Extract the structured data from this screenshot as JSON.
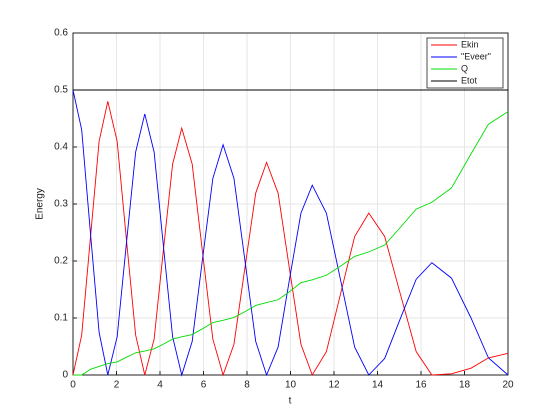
{
  "chart_data": {
    "type": "line",
    "x_label": "t",
    "y_label": "Energy",
    "x": [
      0,
      0.4,
      0.8,
      1.2,
      1.6,
      2.03,
      2.45,
      2.88,
      3.3,
      3.73,
      4.15,
      4.58,
      5.0,
      5.48,
      5.95,
      6.43,
      6.9,
      7.4,
      7.9,
      8.4,
      8.9,
      9.43,
      9.95,
      10.48,
      11.0,
      11.65,
      12.3,
      12.95,
      13.6,
      14.33,
      15.05,
      15.78,
      16.5,
      17.4,
      18.3,
      19.1,
      20
    ],
    "series": [
      {
        "name": "Ekin",
        "color": "#ff0000",
        "values": [
          0,
          0.07,
          0.24,
          0.41,
          0.48,
          0.41,
          0.24,
          0.07,
          0,
          0.063,
          0.217,
          0.37,
          0.433,
          0.37,
          0.217,
          0.063,
          0,
          0.054,
          0.187,
          0.319,
          0.373,
          0.319,
          0.187,
          0.054,
          0,
          0.041,
          0.142,
          0.243,
          0.284,
          0.243,
          0.142,
          0.041,
          0,
          0.002,
          0.012,
          0.03,
          0.038
        ]
      },
      {
        "name": "\"Eveer\"",
        "color": "#0000ff",
        "values": [
          0.5,
          0.43,
          0.25,
          0.075,
          0,
          0.067,
          0.229,
          0.391,
          0.458,
          0.391,
          0.229,
          0.067,
          0,
          0.059,
          0.202,
          0.345,
          0.404,
          0.345,
          0.202,
          0.059,
          0,
          0.049,
          0.167,
          0.284,
          0.333,
          0.284,
          0.167,
          0.049,
          0,
          0.029,
          0.099,
          0.168,
          0.197,
          0.17,
          0.1,
          0.03,
          0
        ]
      },
      {
        "name": "Q",
        "color": "#00dd00",
        "values": [
          0,
          0,
          0.01,
          0.015,
          0.02,
          0.023,
          0.031,
          0.039,
          0.042,
          0.046,
          0.054,
          0.063,
          0.067,
          0.071,
          0.081,
          0.092,
          0.096,
          0.101,
          0.111,
          0.122,
          0.127,
          0.132,
          0.146,
          0.162,
          0.167,
          0.175,
          0.191,
          0.208,
          0.216,
          0.228,
          0.259,
          0.291,
          0.303,
          0.328,
          0.388,
          0.44,
          0.462
        ]
      },
      {
        "name": "Etot",
        "color": "#000000",
        "values": [
          0.5,
          0.5,
          0.5,
          0.5,
          0.5,
          0.5,
          0.5,
          0.5,
          0.5,
          0.5,
          0.5,
          0.5,
          0.5,
          0.5,
          0.5,
          0.5,
          0.5,
          0.5,
          0.5,
          0.5,
          0.5,
          0.5,
          0.5,
          0.5,
          0.5,
          0.5,
          0.5,
          0.5,
          0.5,
          0.5,
          0.5,
          0.5,
          0.5,
          0.5,
          0.5,
          0.5,
          0.5
        ]
      }
    ],
    "xlim": [
      0,
      20
    ],
    "xticks": [
      0,
      2,
      4,
      6,
      8,
      10,
      12,
      14,
      16,
      18,
      20
    ],
    "ylim": [
      0,
      0.6
    ],
    "yticks": [
      0,
      0.1,
      0.2,
      0.3,
      0.4,
      0.5,
      0.6
    ],
    "grid": true,
    "legend": "top-right"
  }
}
